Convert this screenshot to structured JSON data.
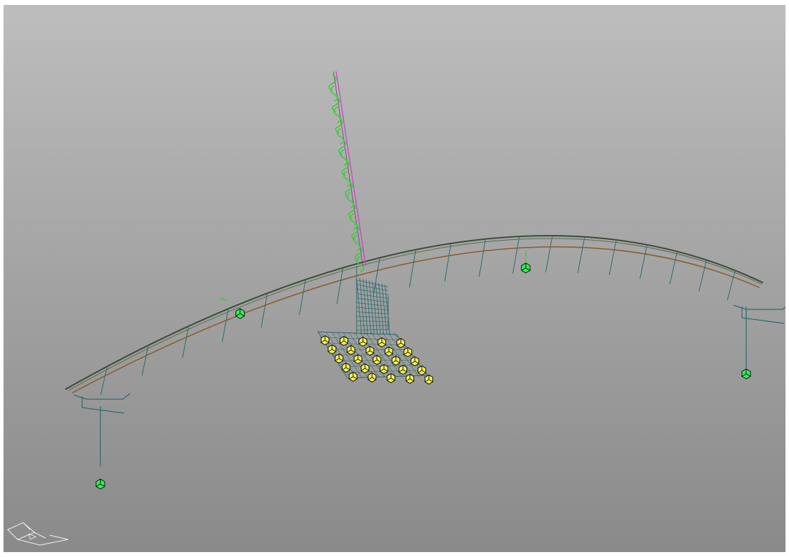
{
  "viewport": {
    "background_top": "#bdbdbd",
    "background_bottom": "#8a8a8a"
  },
  "colors": {
    "structure_line": "#2f6b6e",
    "deck_edge_dark": "#3b4a3a",
    "deck_edge_brown": "#8b5a2b",
    "pylon_cable": "#cc44cc",
    "pylon_stay": "#2ed12e",
    "support_node": "#33ee55",
    "pile_cap": "#f2ee55",
    "triad_line": "#f0f0f0"
  },
  "icons": {
    "view_triad": "view-orientation-triad-icon",
    "support": "support-node-icon",
    "pile": "pile-cap-icon"
  }
}
